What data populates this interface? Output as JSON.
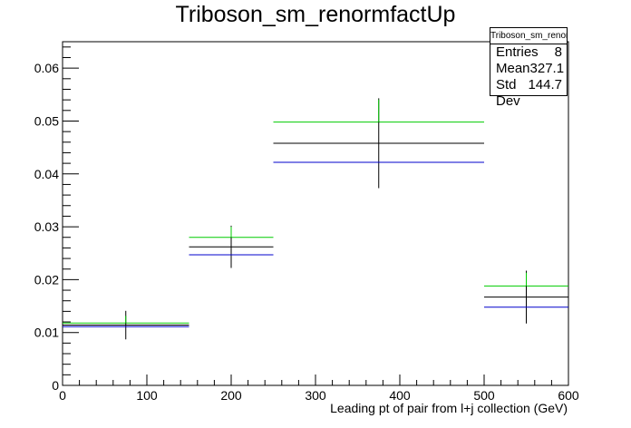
{
  "chart_data": {
    "type": "histogram",
    "title": "Triboson_sm_renormfactUp",
    "xlabel": "Leading pt of pair from l+j collection (GeV)",
    "ylabel": "",
    "xlim": [
      0,
      600
    ],
    "ylim": [
      0,
      0.065
    ],
    "xticks": [
      0,
      100,
      200,
      300,
      400,
      500,
      600
    ],
    "xtick_labels": [
      "0",
      "100",
      "200",
      "300",
      "400",
      "500",
      "600"
    ],
    "yticks": [
      0,
      0.01,
      0.02,
      0.03,
      0.04,
      0.05,
      0.06
    ],
    "ytick_labels": [
      "0",
      "0.01",
      "0.02",
      "0.03",
      "0.04",
      "0.05",
      "0.06"
    ],
    "bins": [
      [
        0,
        150
      ],
      [
        150,
        250
      ],
      [
        250,
        500
      ],
      [
        500,
        600
      ]
    ],
    "series": [
      {
        "color": "#00cc00",
        "values": [
          0.0118,
          0.028,
          0.0498,
          0.0188
        ]
      },
      {
        "color": "#000000",
        "values": [
          0.0114,
          0.0262,
          0.0458,
          0.0167
        ],
        "errors": [
          0.0027,
          0.004,
          0.0085,
          0.005
        ]
      },
      {
        "color": "#0000cc",
        "values": [
          0.0111,
          0.0247,
          0.0422,
          0.0148
        ]
      }
    ],
    "stats": {
      "title": "Triboson_sm_renormfactUp",
      "rows": [
        {
          "label": "Entries",
          "value": "8"
        },
        {
          "label": "Mean",
          "value": "327.1"
        },
        {
          "label": "Std Dev",
          "value": "144.7"
        }
      ]
    }
  }
}
